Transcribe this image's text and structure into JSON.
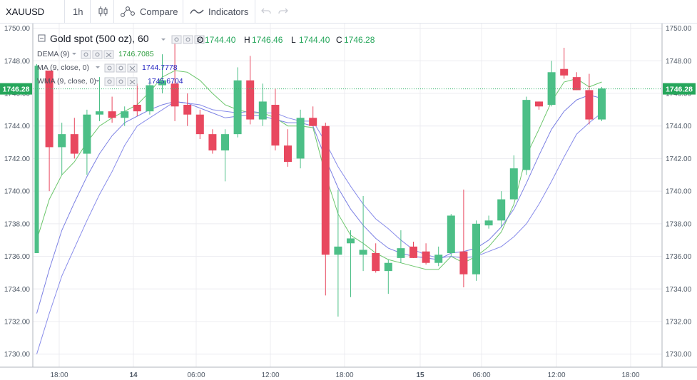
{
  "toolbar": {
    "symbol": "XAUUSD",
    "interval": "1h",
    "compare_label": "Compare",
    "indicators_label": "Indicators"
  },
  "legend": {
    "title": "Gold spot (500 oz), 60",
    "ohlc": [
      {
        "label": "O",
        "value": "1744.40"
      },
      {
        "label": "H",
        "value": "1746.46"
      },
      {
        "label": "L",
        "value": "1744.40"
      },
      {
        "label": "C",
        "value": "1746.28"
      }
    ],
    "studies": [
      {
        "name": "DEMA (9)",
        "value": "1746.7085",
        "color": "#2e9e3e"
      },
      {
        "name": "MA (9, close, 0)",
        "value": "1744.7778",
        "color": "#1f1fbf"
      },
      {
        "name": "WMA (9, close, 0)",
        "value": "1745.6704",
        "color": "#1f1fbf"
      }
    ]
  },
  "price_tag": "1746.28",
  "colors": {
    "up": "#4cbf87",
    "down": "#e8485f",
    "dema": "#5cc05c",
    "ma": "#7b7fe8",
    "wma": "#6d72e0",
    "grid": "#ececf0",
    "price_line": "#3cb870",
    "tag_bg": "#26a65b"
  },
  "chart_data": {
    "type": "candlestick",
    "title": "Gold spot (500 oz), 60",
    "ylim": [
      1729.2,
      1750.2
    ],
    "y_ticks": [
      "1750.00",
      "1748.00",
      "1746.00",
      "1744.00",
      "1742.00",
      "1740.00",
      "1738.00",
      "1736.00",
      "1734.00",
      "1732.00",
      "1730.00"
    ],
    "x_ticks": [
      "18:00",
      "14",
      "06:00",
      "12:00",
      "18:00",
      "15",
      "06:00",
      "12:00",
      "18:00"
    ],
    "candles": [
      {
        "o": 1736.2,
        "h": 1747.8,
        "l": 1736.2,
        "c": 1747.7
      },
      {
        "o": 1747.4,
        "h": 1747.4,
        "l": 1740.0,
        "c": 1742.7
      },
      {
        "o": 1742.7,
        "h": 1744.2,
        "l": 1741.0,
        "c": 1743.5
      },
      {
        "o": 1743.5,
        "h": 1744.5,
        "l": 1742.0,
        "c": 1742.3
      },
      {
        "o": 1742.3,
        "h": 1745.0,
        "l": 1741.0,
        "c": 1744.7
      },
      {
        "o": 1744.7,
        "h": 1747.0,
        "l": 1744.3,
        "c": 1744.9
      },
      {
        "o": 1744.9,
        "h": 1745.8,
        "l": 1744.2,
        "c": 1744.5
      },
      {
        "o": 1744.5,
        "h": 1745.2,
        "l": 1744.0,
        "c": 1744.9
      },
      {
        "o": 1745.3,
        "h": 1746.6,
        "l": 1744.6,
        "c": 1744.9
      },
      {
        "o": 1744.9,
        "h": 1746.8,
        "l": 1744.7,
        "c": 1746.5
      },
      {
        "o": 1746.5,
        "h": 1748.4,
        "l": 1746.0,
        "c": 1746.8
      },
      {
        "o": 1746.6,
        "h": 1749.2,
        "l": 1744.3,
        "c": 1745.2
      },
      {
        "o": 1745.3,
        "h": 1746.0,
        "l": 1744.0,
        "c": 1744.7
      },
      {
        "o": 1744.7,
        "h": 1745.0,
        "l": 1743.2,
        "c": 1743.5
      },
      {
        "o": 1743.5,
        "h": 1743.8,
        "l": 1742.3,
        "c": 1742.5
      },
      {
        "o": 1742.5,
        "h": 1743.8,
        "l": 1740.6,
        "c": 1743.5
      },
      {
        "o": 1743.5,
        "h": 1747.6,
        "l": 1743.3,
        "c": 1746.8
      },
      {
        "o": 1746.8,
        "h": 1748.3,
        "l": 1744.1,
        "c": 1744.4
      },
      {
        "o": 1744.4,
        "h": 1746.6,
        "l": 1744.0,
        "c": 1745.5
      },
      {
        "o": 1745.3,
        "h": 1746.3,
        "l": 1742.5,
        "c": 1742.8
      },
      {
        "o": 1742.8,
        "h": 1743.8,
        "l": 1741.5,
        "c": 1741.8
      },
      {
        "o": 1742.0,
        "h": 1745.0,
        "l": 1741.4,
        "c": 1744.5
      },
      {
        "o": 1744.5,
        "h": 1745.2,
        "l": 1744.0,
        "c": 1744.0
      },
      {
        "o": 1744.0,
        "h": 1744.2,
        "l": 1733.6,
        "c": 1736.1
      },
      {
        "o": 1736.1,
        "h": 1740.1,
        "l": 1732.3,
        "c": 1736.6
      },
      {
        "o": 1736.8,
        "h": 1737.6,
        "l": 1733.5,
        "c": 1737.1
      },
      {
        "o": 1736.1,
        "h": 1739.7,
        "l": 1735.1,
        "c": 1736.4
      },
      {
        "o": 1736.2,
        "h": 1736.8,
        "l": 1735.0,
        "c": 1735.1
      },
      {
        "o": 1735.1,
        "h": 1735.8,
        "l": 1733.7,
        "c": 1735.6
      },
      {
        "o": 1735.9,
        "h": 1737.6,
        "l": 1735.6,
        "c": 1736.5
      },
      {
        "o": 1736.6,
        "h": 1736.9,
        "l": 1735.9,
        "c": 1735.9
      },
      {
        "o": 1736.3,
        "h": 1736.8,
        "l": 1735.5,
        "c": 1735.6
      },
      {
        "o": 1735.6,
        "h": 1736.6,
        "l": 1735.4,
        "c": 1736.1
      },
      {
        "o": 1736.2,
        "h": 1738.6,
        "l": 1736.0,
        "c": 1738.5
      },
      {
        "o": 1736.3,
        "h": 1740.1,
        "l": 1734.1,
        "c": 1734.9
      },
      {
        "o": 1734.9,
        "h": 1738.2,
        "l": 1734.5,
        "c": 1738.0
      },
      {
        "o": 1737.9,
        "h": 1738.5,
        "l": 1737.7,
        "c": 1738.2
      },
      {
        "o": 1738.2,
        "h": 1740.0,
        "l": 1737.8,
        "c": 1739.5
      },
      {
        "o": 1739.5,
        "h": 1742.2,
        "l": 1739.5,
        "c": 1741.4
      },
      {
        "o": 1741.3,
        "h": 1745.8,
        "l": 1741.0,
        "c": 1745.6
      },
      {
        "o": 1745.5,
        "h": 1745.5,
        "l": 1745.0,
        "c": 1745.2
      },
      {
        "o": 1745.3,
        "h": 1748.0,
        "l": 1745.2,
        "c": 1747.3
      },
      {
        "o": 1747.5,
        "h": 1748.8,
        "l": 1746.9,
        "c": 1747.1
      },
      {
        "o": 1747.0,
        "h": 1747.3,
        "l": 1746.2,
        "c": 1746.2
      },
      {
        "o": 1746.2,
        "h": 1747.2,
        "l": 1744.1,
        "c": 1744.4
      },
      {
        "o": 1744.4,
        "h": 1746.4,
        "l": 1744.3,
        "c": 1746.3
      }
    ],
    "series": [
      {
        "name": "DEMA (9)",
        "values": [
          1737.0,
          1739.5,
          1741.0,
          1741.8,
          1743.0,
          1744.0,
          1744.5,
          1744.9,
          1745.3,
          1746.1,
          1747.0,
          1747.4,
          1747.3,
          1746.8,
          1746.0,
          1745.3,
          1745.0,
          1744.8,
          1744.8,
          1744.5,
          1744.0,
          1744.0,
          1743.9,
          1741.0,
          1738.6,
          1737.3,
          1736.8,
          1736.2,
          1735.8,
          1735.6,
          1735.4,
          1735.2,
          1735.2,
          1736.0,
          1735.6,
          1736.0,
          1736.6,
          1737.5,
          1739.2,
          1742.2,
          1743.8,
          1745.5,
          1746.7,
          1746.9,
          1746.4,
          1746.7
        ]
      },
      {
        "name": "MA (9, close, 0)",
        "values": [
          1730.0,
          1732.5,
          1734.8,
          1736.5,
          1738.2,
          1739.8,
          1741.2,
          1742.8,
          1744.0,
          1744.5,
          1745.0,
          1745.5,
          1745.4,
          1745.3,
          1745.0,
          1744.9,
          1744.8,
          1744.9,
          1744.8,
          1744.8,
          1744.5,
          1744.3,
          1744.3,
          1743.0,
          1741.5,
          1740.3,
          1739.2,
          1738.3,
          1737.7,
          1737.0,
          1736.4,
          1736.1,
          1735.9,
          1736.0,
          1735.9,
          1736.0,
          1736.3,
          1736.6,
          1737.2,
          1738.0,
          1739.2,
          1740.6,
          1742.1,
          1743.5,
          1744.2,
          1744.8
        ]
      },
      {
        "name": "WMA (9, close, 0)",
        "values": [
          1732.5,
          1735.2,
          1737.6,
          1739.3,
          1740.9,
          1742.3,
          1743.4,
          1744.2,
          1744.6,
          1745.0,
          1745.3,
          1745.5,
          1745.4,
          1745.1,
          1744.8,
          1744.5,
          1744.6,
          1744.7,
          1744.6,
          1744.4,
          1744.2,
          1744.2,
          1744.0,
          1742.0,
          1740.2,
          1738.9,
          1737.9,
          1737.1,
          1736.5,
          1736.2,
          1736.0,
          1735.9,
          1735.8,
          1736.2,
          1736.3,
          1736.5,
          1737.0,
          1737.8,
          1738.9,
          1740.5,
          1742.2,
          1743.8,
          1744.9,
          1745.6,
          1745.9,
          1745.7
        ]
      }
    ]
  }
}
